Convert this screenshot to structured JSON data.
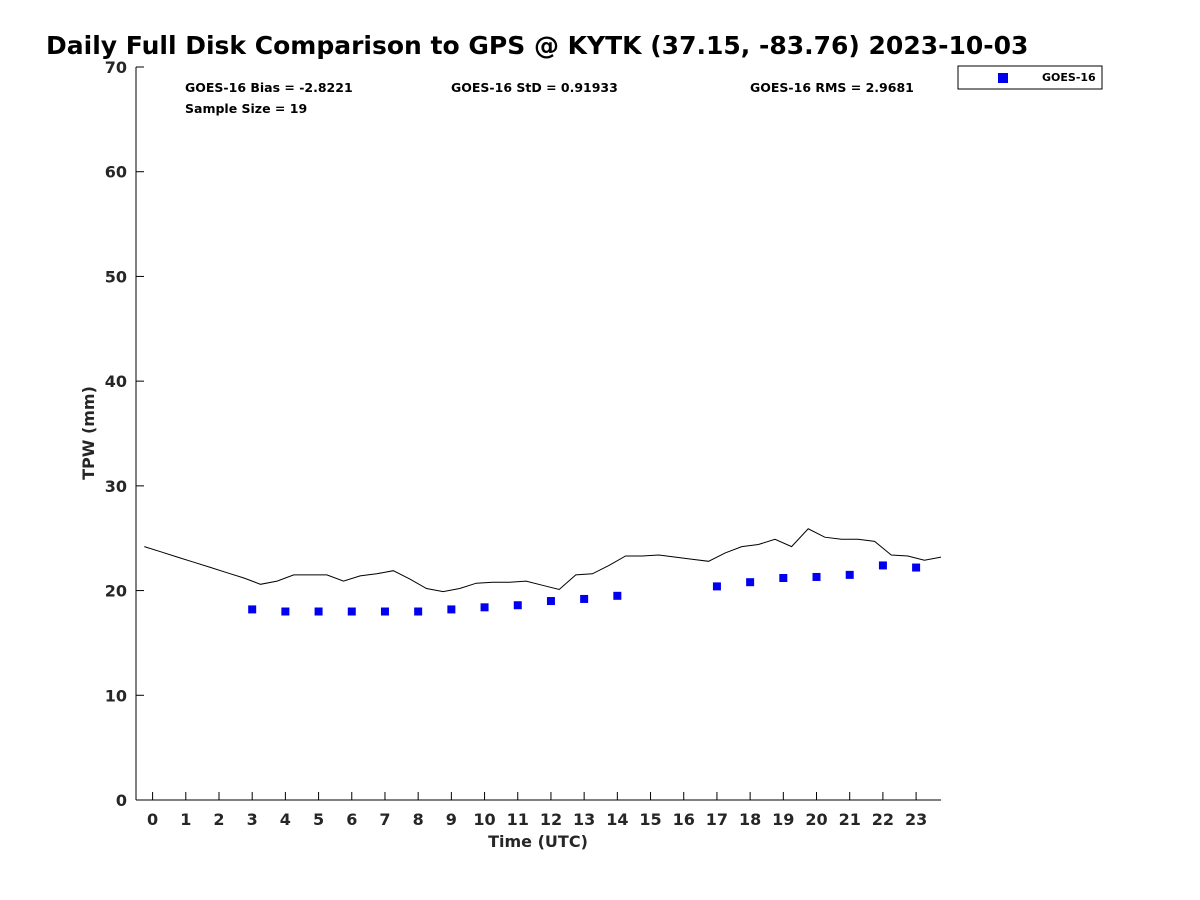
{
  "chart_data": {
    "type": "scatter",
    "title": "Daily Full Disk Comparison to GPS @ KYTK (37.15, -83.76) 2023-10-03",
    "xlabel": "Time (UTC)",
    "ylabel": "TPW (mm)",
    "xlim": [
      -0.5,
      23.75
    ],
    "ylim": [
      0,
      70
    ],
    "x_ticks": [
      0,
      1,
      2,
      3,
      4,
      5,
      6,
      7,
      8,
      9,
      10,
      11,
      12,
      13,
      14,
      15,
      16,
      17,
      18,
      19,
      20,
      21,
      22,
      23
    ],
    "y_ticks": [
      0,
      10,
      20,
      30,
      40,
      50,
      60,
      70
    ],
    "grid": false,
    "legend_position": "top-right",
    "stats": {
      "bias": "GOES-16 Bias = -2.8221",
      "std": "GOES-16 StD = 0.91933",
      "rms": "GOES-16 RMS = 2.9681",
      "sample_size": "Sample Size = 19"
    },
    "series": [
      {
        "name": "GOES-16",
        "kind": "scatter",
        "marker": "square",
        "color": "#0000ee",
        "x": [
          3,
          4,
          5,
          6,
          7,
          8,
          9,
          10,
          11,
          12,
          13,
          14,
          17,
          18,
          19,
          20,
          21,
          22,
          23
        ],
        "y": [
          18.2,
          18.0,
          18.0,
          18.0,
          18.0,
          18.0,
          18.2,
          18.4,
          18.6,
          19.0,
          19.2,
          19.5,
          20.4,
          20.8,
          21.2,
          21.3,
          21.5,
          22.4,
          22.2
        ]
      },
      {
        "kind": "line",
        "color": "#000000",
        "x": [
          -0.25,
          0.25,
          0.75,
          1.25,
          1.75,
          2.25,
          2.75,
          3.25,
          3.75,
          4.25,
          4.75,
          5.25,
          5.75,
          6.25,
          6.75,
          7.25,
          7.75,
          8.25,
          8.75,
          9.25,
          9.75,
          10.25,
          10.75,
          11.25,
          11.75,
          12.25,
          12.75,
          13.25,
          13.75,
          14.25,
          14.75,
          15.25,
          15.75,
          16.25,
          16.75,
          17.25,
          17.75,
          18.25,
          18.75,
          19.25,
          19.75,
          20.25,
          20.75,
          21.25,
          21.75,
          22.25,
          22.75,
          23.25,
          23.75
        ],
        "y": [
          24.2,
          23.7,
          23.2,
          22.7,
          22.2,
          21.7,
          21.2,
          20.6,
          20.9,
          21.5,
          21.5,
          21.5,
          20.9,
          21.4,
          21.6,
          21.9,
          21.1,
          20.2,
          19.9,
          20.2,
          20.7,
          20.8,
          20.8,
          20.9,
          20.5,
          20.1,
          21.5,
          21.6,
          22.4,
          23.3,
          23.3,
          23.4,
          23.2,
          23.0,
          22.8,
          23.6,
          24.2,
          24.4,
          24.9,
          24.2,
          25.9,
          25.1,
          24.9,
          24.9,
          24.7,
          23.4,
          23.3,
          22.9,
          23.2
        ]
      }
    ]
  }
}
